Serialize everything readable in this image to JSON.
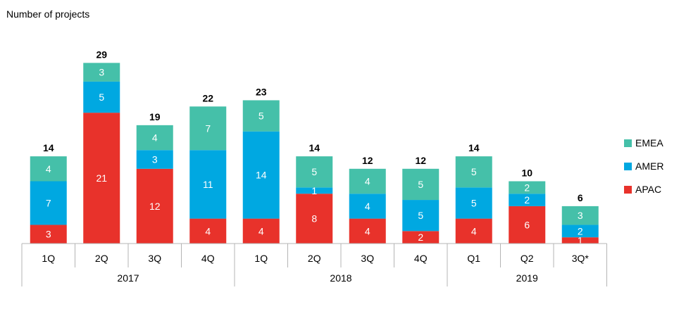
{
  "chart_data": {
    "type": "bar",
    "stacked": true,
    "ylabel": "Number of projects",
    "categories": [
      "1Q",
      "2Q",
      "3Q",
      "4Q",
      "1Q",
      "2Q",
      "3Q",
      "4Q",
      "Q1",
      "Q2",
      "3Q*"
    ],
    "groups": [
      {
        "label": "2017",
        "count": 4
      },
      {
        "label": "2018",
        "count": 4
      },
      {
        "label": "2019",
        "count": 3
      }
    ],
    "series": [
      {
        "name": "APAC",
        "color": "#e8322b",
        "values": [
          3,
          21,
          12,
          4,
          4,
          8,
          4,
          2,
          4,
          6,
          1
        ]
      },
      {
        "name": "AMER",
        "color": "#00a8e1",
        "values": [
          7,
          5,
          3,
          11,
          14,
          1,
          4,
          5,
          5,
          2,
          2
        ]
      },
      {
        "name": "EMEA",
        "color": "#45c0a9",
        "values": [
          4,
          3,
          4,
          7,
          5,
          5,
          4,
          5,
          5,
          2,
          3
        ]
      }
    ],
    "totals": [
      14,
      29,
      19,
      22,
      23,
      14,
      12,
      12,
      14,
      10,
      6
    ],
    "legend_position": "right",
    "legend_order": [
      "EMEA",
      "AMER",
      "APAC"
    ],
    "grid": false
  }
}
